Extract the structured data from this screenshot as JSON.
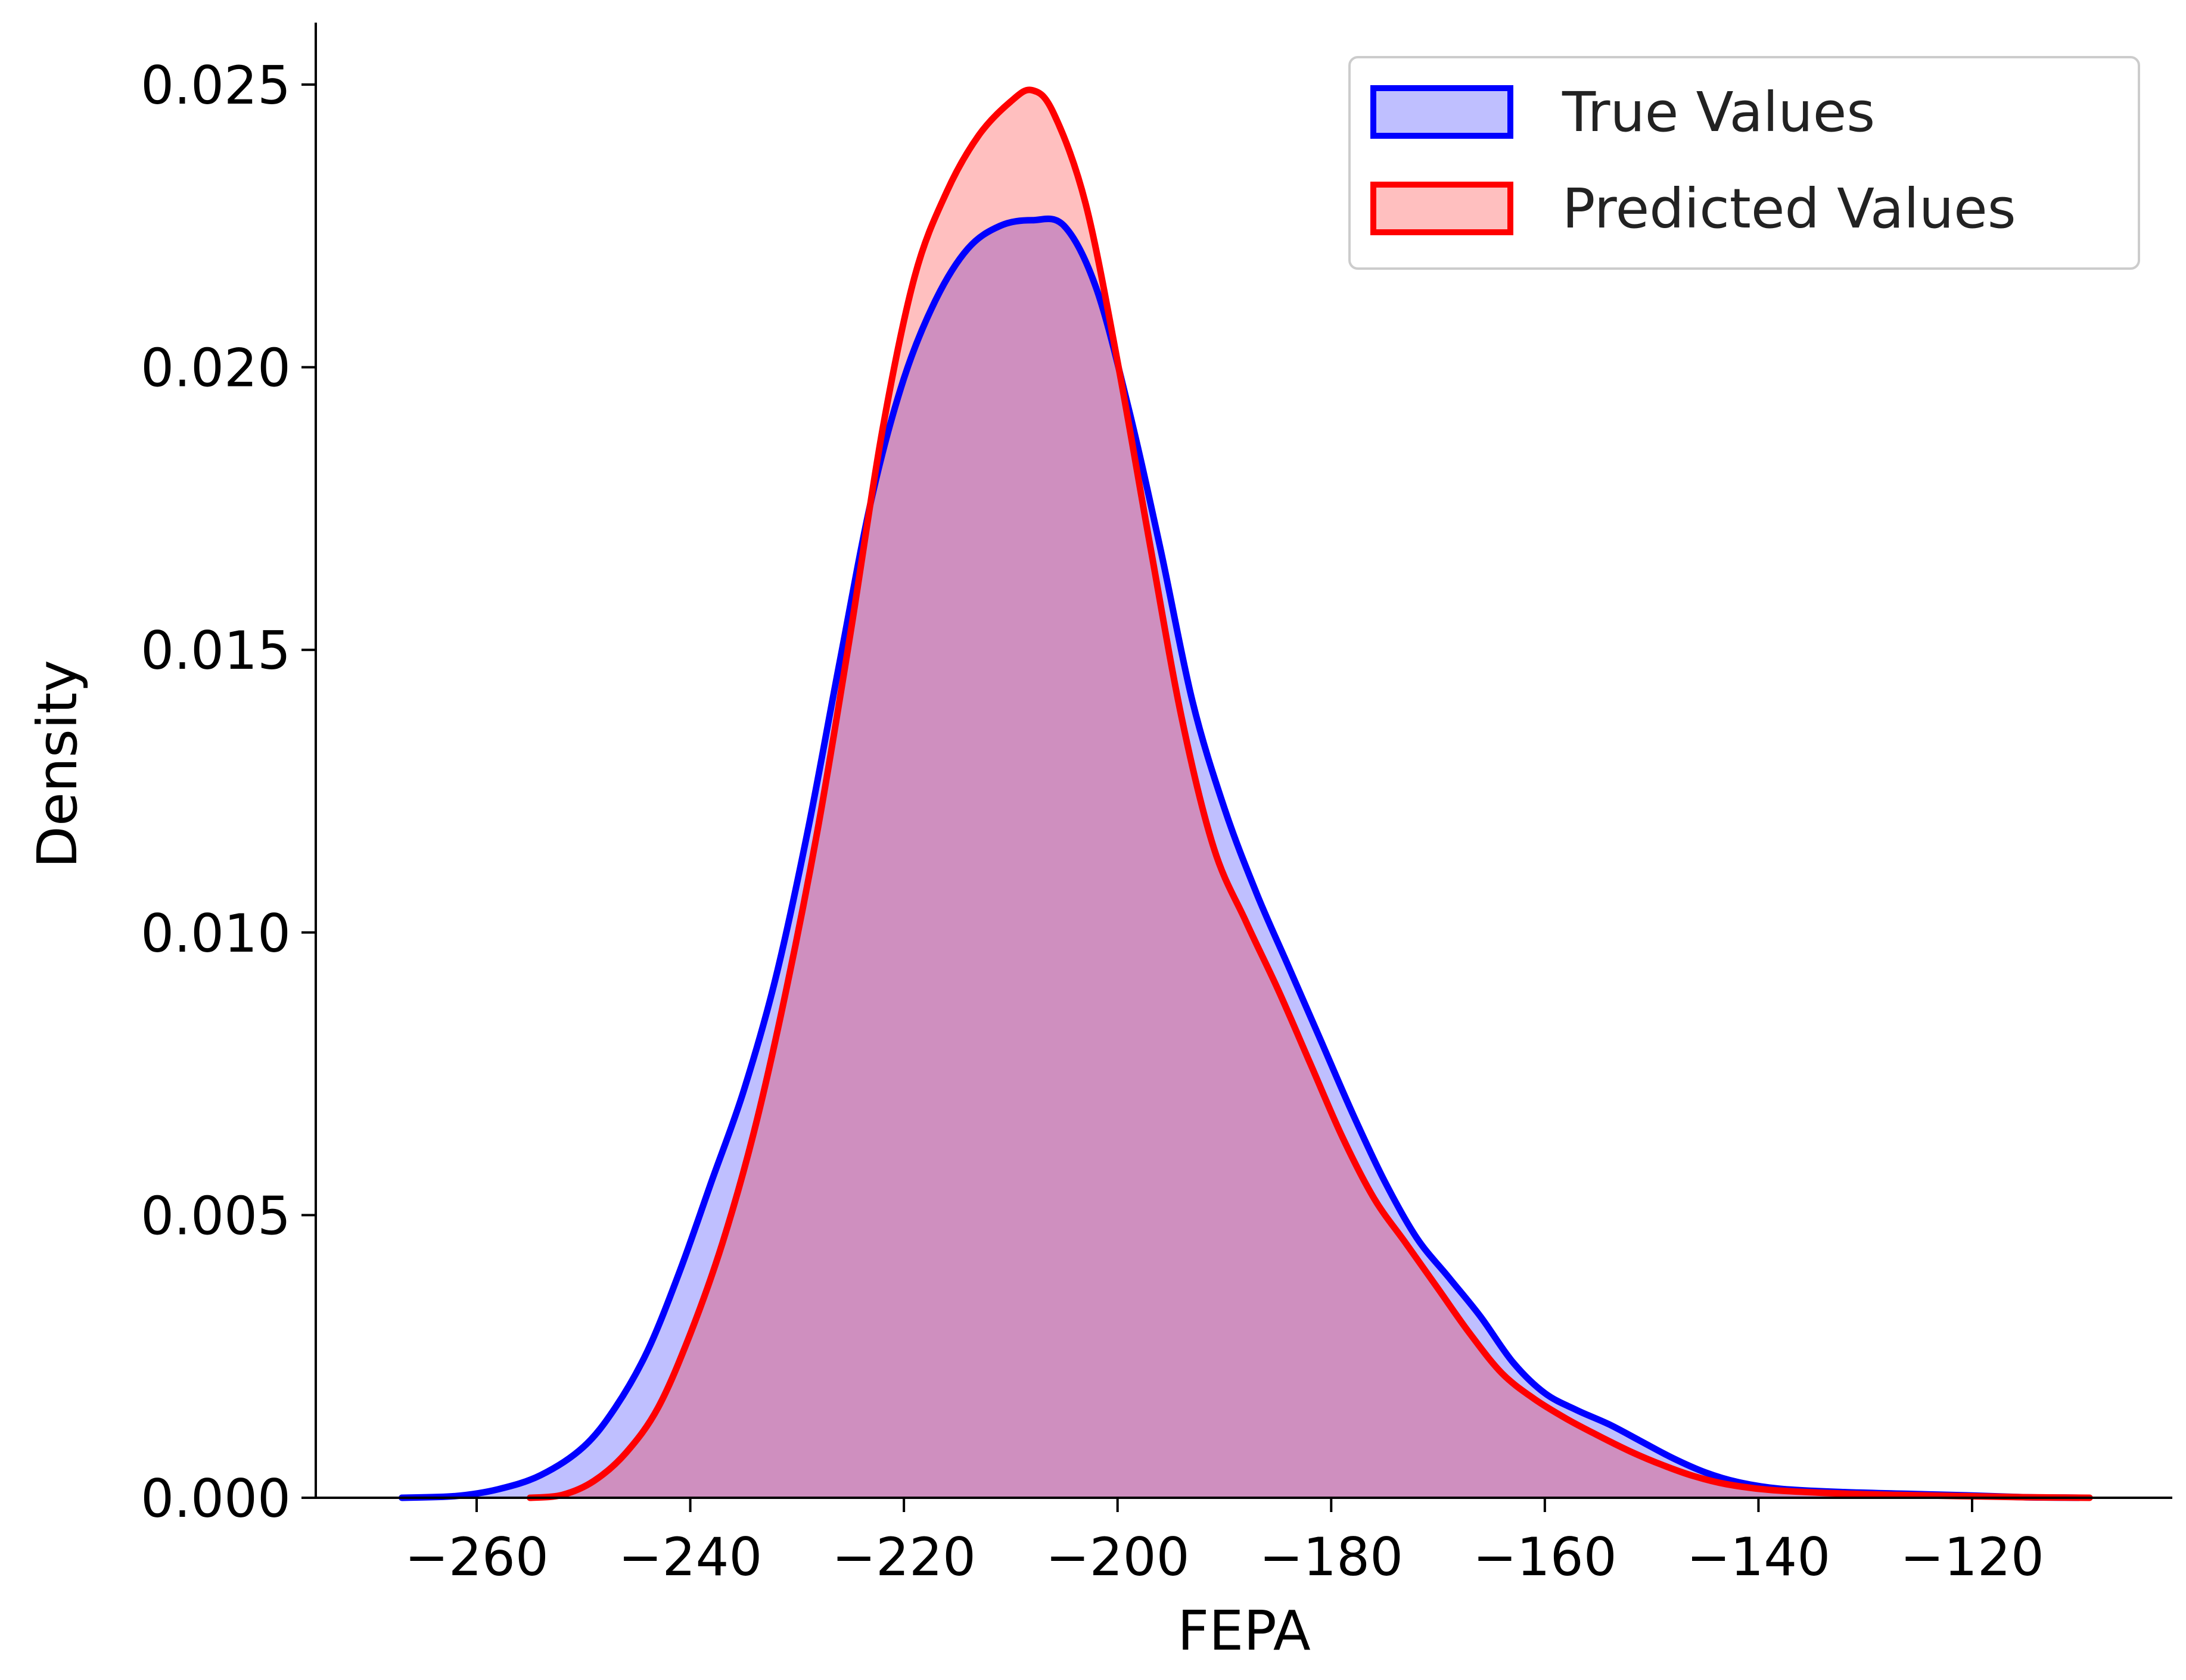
{
  "chart_data": {
    "type": "area",
    "title": "",
    "xlabel": "FEPA",
    "ylabel": "Density",
    "xlim": [
      -274,
      -105
    ],
    "ylim": [
      0,
      0.026
    ],
    "xticks": [
      -260,
      -240,
      -220,
      -200,
      -180,
      -160,
      -140,
      -120
    ],
    "xtick_labels": [
      "−260",
      "−240",
      "−220",
      "−200",
      "−180",
      "−160",
      "−140",
      "−120"
    ],
    "yticks": [
      0,
      0.005,
      0.01,
      0.015,
      0.02,
      0.025
    ],
    "ytick_labels": [
      "0.000",
      "0.005",
      "0.010",
      "0.015",
      "0.020",
      "0.025"
    ],
    "grid": false,
    "legend_position": "top-right",
    "series": [
      {
        "name": "True Values",
        "color": "#0000ff",
        "fill": "#0000ff",
        "points": [
          [
            -267,
            0.0
          ],
          [
            -262,
            3e-05
          ],
          [
            -258,
            0.00015
          ],
          [
            -254,
            0.0004
          ],
          [
            -250,
            0.0009
          ],
          [
            -247,
            0.0016
          ],
          [
            -244,
            0.0026
          ],
          [
            -241,
            0.004
          ],
          [
            -238,
            0.0056
          ],
          [
            -235,
            0.0072
          ],
          [
            -232,
            0.0092
          ],
          [
            -229,
            0.0118
          ],
          [
            -226,
            0.0148
          ],
          [
            -223,
            0.0177
          ],
          [
            -220,
            0.0198
          ],
          [
            -217,
            0.0212
          ],
          [
            -214,
            0.0221
          ],
          [
            -211,
            0.0225
          ],
          [
            -208,
            0.0226
          ],
          [
            -205,
            0.0225
          ],
          [
            -202,
            0.0214
          ],
          [
            -199,
            0.0193
          ],
          [
            -196,
            0.0168
          ],
          [
            -193,
            0.0141
          ],
          [
            -190,
            0.0122
          ],
          [
            -187,
            0.0107
          ],
          [
            -184,
            0.0094
          ],
          [
            -181,
            0.0081
          ],
          [
            -178,
            0.0068
          ],
          [
            -175,
            0.0056
          ],
          [
            -172,
            0.0046
          ],
          [
            -169,
            0.0039
          ],
          [
            -166,
            0.0032
          ],
          [
            -163,
            0.0024
          ],
          [
            -160,
            0.00185
          ],
          [
            -157,
            0.00155
          ],
          [
            -154,
            0.0013
          ],
          [
            -151,
            0.001
          ],
          [
            -148,
            0.0007
          ],
          [
            -145,
            0.00045
          ],
          [
            -142,
            0.00028
          ],
          [
            -138,
            0.00016
          ],
          [
            -132,
            0.0001
          ],
          [
            -126,
            7e-05
          ],
          [
            -120,
            4e-05
          ],
          [
            -115,
            1e-05
          ],
          [
            -110,
            0.0
          ]
        ]
      },
      {
        "name": "Predicted Values",
        "color": "#ff0000",
        "fill": "#ff0000",
        "points": [
          [
            -255,
            0.0
          ],
          [
            -252,
            5e-05
          ],
          [
            -249,
            0.0003
          ],
          [
            -246,
            0.0008
          ],
          [
            -243,
            0.0016
          ],
          [
            -240,
            0.0029
          ],
          [
            -237,
            0.0045
          ],
          [
            -234,
            0.0065
          ],
          [
            -231,
            0.009
          ],
          [
            -228,
            0.0119
          ],
          [
            -225,
            0.0153
          ],
          [
            -222,
            0.0189
          ],
          [
            -219,
            0.0216
          ],
          [
            -216,
            0.0231
          ],
          [
            -213,
            0.0241
          ],
          [
            -210,
            0.0247
          ],
          [
            -208,
            0.0249
          ],
          [
            -206,
            0.0245
          ],
          [
            -203,
            0.0229
          ],
          [
            -200,
            0.0201
          ],
          [
            -197,
            0.0169
          ],
          [
            -194,
            0.0138
          ],
          [
            -191,
            0.0115
          ],
          [
            -188,
            0.0102
          ],
          [
            -185,
            0.009
          ],
          [
            -182,
            0.0077
          ],
          [
            -179,
            0.0064
          ],
          [
            -176,
            0.0053
          ],
          [
            -173,
            0.0045
          ],
          [
            -170,
            0.0037
          ],
          [
            -167,
            0.0029
          ],
          [
            -164,
            0.0022
          ],
          [
            -161,
            0.00175
          ],
          [
            -158,
            0.0014
          ],
          [
            -155,
            0.0011
          ],
          [
            -152,
            0.00082
          ],
          [
            -149,
            0.00058
          ],
          [
            -146,
            0.00038
          ],
          [
            -143,
            0.00024
          ],
          [
            -139,
            0.00014
          ],
          [
            -133,
            8e-05
          ],
          [
            -127,
            5e-05
          ],
          [
            -121,
            3e-05
          ],
          [
            -115,
            1e-05
          ],
          [
            -109,
            0.0
          ]
        ]
      }
    ]
  }
}
